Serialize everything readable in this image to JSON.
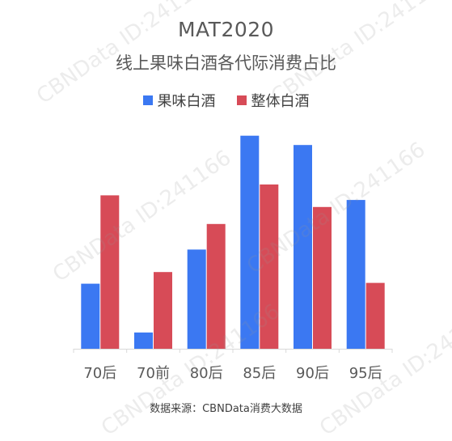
{
  "watermark": "CBNData ID:241166",
  "colors": {
    "series1": "#3B78F2",
    "series2": "#D74B57",
    "axis": "#d9d9d9",
    "tick": "#595959"
  },
  "source": "数据来源：CBNData消费大数据",
  "chart_data": {
    "type": "bar",
    "title": "MAT2020",
    "subtitle": "线上果味白酒各代际消费占比",
    "xlabel": "",
    "ylabel": "",
    "categories": [
      "70后",
      "70前",
      "80后",
      "85后",
      "90后",
      "95后"
    ],
    "series": [
      {
        "name": "果味白酒",
        "values": [
          8.4,
          2.1,
          12.8,
          27.5,
          26.3,
          19.2
        ]
      },
      {
        "name": "整体白酒",
        "values": [
          19.8,
          9.9,
          16.1,
          21.2,
          18.3,
          8.5
        ]
      }
    ],
    "ylim": [
      0,
      28.3
    ],
    "grid": false,
    "legend_position": "top"
  }
}
